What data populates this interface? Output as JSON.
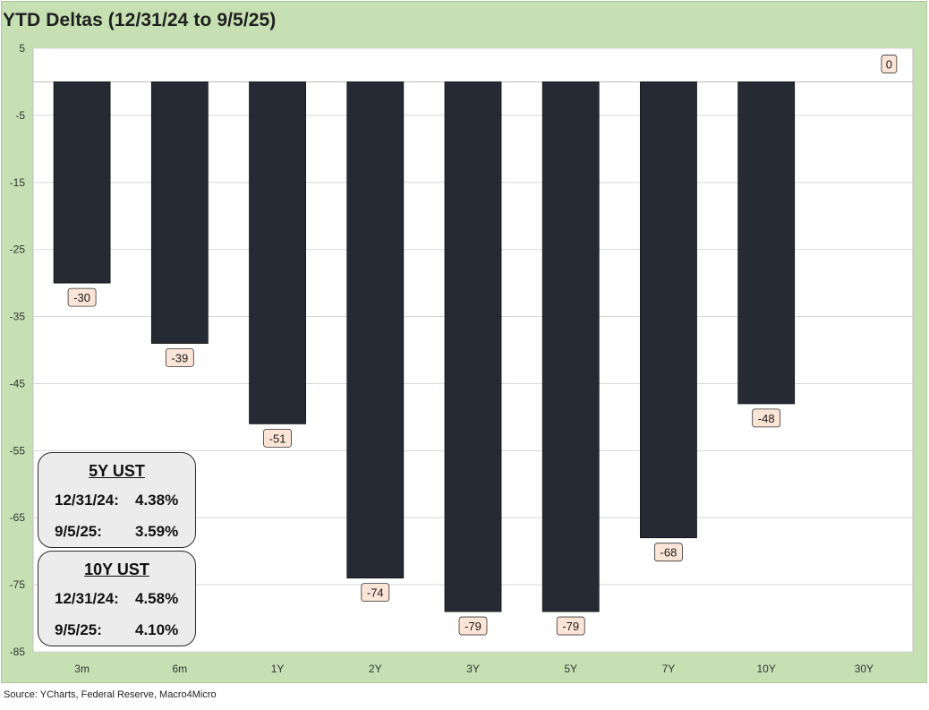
{
  "title": "YTD Deltas (12/31/24 to 9/5/25)",
  "source": "Source: YCharts, Federal Reserve, Macro4Micro",
  "colors": {
    "frame": "#c6e0b4",
    "plot_bg": "#ffffff",
    "bar": "#252a35",
    "label_bg": "#fce4d6",
    "grid": "#d9d9d9"
  },
  "chart_data": {
    "type": "bar",
    "categories": [
      "3m",
      "6m",
      "1Y",
      "2Y",
      "3Y",
      "5Y",
      "7Y",
      "10Y",
      "30Y"
    ],
    "values": [
      -30,
      -39,
      -51,
      -74,
      -79,
      -79,
      -68,
      -48,
      0
    ],
    "data_labels": [
      "-30",
      "-39",
      "-51",
      "-74",
      "-79",
      "-79",
      "-68",
      "-48",
      "0"
    ],
    "ylim": [
      -85,
      5
    ],
    "yticks": [
      5,
      -5,
      -15,
      -25,
      -35,
      -45,
      -55,
      -65,
      -75,
      -85
    ],
    "grid": true,
    "legend": "none"
  },
  "boxes": [
    {
      "title": "5Y UST",
      "rows": [
        {
          "date": "12/31/24:",
          "value": "4.38%"
        },
        {
          "date": "9/5/25:",
          "value": "3.59%"
        }
      ]
    },
    {
      "title": "10Y UST",
      "rows": [
        {
          "date": "12/31/24:",
          "value": "4.58%"
        },
        {
          "date": "9/5/25:",
          "value": "4.10%"
        }
      ]
    }
  ]
}
